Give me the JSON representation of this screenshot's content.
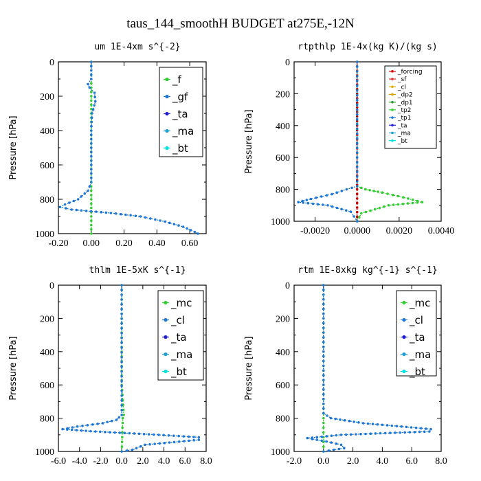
{
  "title": "taus_144_smoothH  BUDGET at275E,-12N",
  "chart_data": [
    {
      "type": "line",
      "title": "um   1E-4xm s^{-2}",
      "ylabel": "Pressure [hPa]",
      "xlim": [
        -0.2,
        0.7
      ],
      "ylim": [
        1000,
        0
      ],
      "xticks": [
        -0.2,
        0.0,
        0.2,
        0.4,
        0.6
      ],
      "xtick_labels": [
        "-0.20",
        "0.00",
        "0.20",
        "0.40",
        "0.60"
      ],
      "yticks": [
        0,
        200,
        400,
        600,
        800,
        1000
      ],
      "legend_position": "top-right",
      "series": [
        {
          "name": "_f",
          "color": "#33cc33",
          "pressure": [
            1000,
            900,
            800,
            700,
            600,
            500,
            400,
            300,
            200,
            100,
            0
          ],
          "values": [
            0,
            0,
            0,
            0,
            0,
            0,
            0,
            0,
            0,
            0,
            0
          ]
        },
        {
          "name": "_gf",
          "color": "#1f77d4",
          "pressure": [
            0,
            100,
            130,
            150,
            180,
            230,
            300,
            400,
            500,
            600,
            700,
            750,
            800,
            830,
            845,
            860,
            880,
            900,
            930,
            960,
            990,
            1000
          ],
          "values": [
            0,
            0,
            -0.02,
            -0.01,
            0.02,
            0.025,
            0.005,
            0,
            0,
            0,
            0,
            -0.02,
            -0.08,
            -0.16,
            -0.19,
            -0.12,
            0.12,
            0.3,
            0.45,
            0.56,
            0.63,
            0.65
          ]
        },
        {
          "name": "_ta",
          "color": "#2020d0",
          "pressure": [],
          "values": []
        },
        {
          "name": "_ma",
          "color": "#1f9fd4",
          "pressure": [],
          "values": []
        },
        {
          "name": "_bt",
          "color": "#00e0e0",
          "pressure": [],
          "values": []
        }
      ]
    },
    {
      "type": "line",
      "title": "rtpthlp   1E-4x(kg K)/(kg s)",
      "ylabel": "Pressure [hPa]",
      "xlim": [
        -0.003,
        0.004
      ],
      "ylim": [
        1000,
        0
      ],
      "xticks": [
        -0.002,
        0.0,
        0.002,
        0.004
      ],
      "xtick_labels": [
        "-0.0020",
        "0.0000",
        "0.0020",
        "0.0040"
      ],
      "yticks": [
        0,
        200,
        400,
        600,
        800,
        1000
      ],
      "legend_position": "top-right",
      "series": [
        {
          "name": "_forcing",
          "color": "#cc0000",
          "pressure": [
            1000,
            800,
            600,
            400,
            200,
            0
          ],
          "values": [
            0,
            0,
            0,
            0,
            0,
            0
          ]
        },
        {
          "name": "_sf",
          "color": "#e03030",
          "pressure": [],
          "values": []
        },
        {
          "name": "_cl",
          "color": "#e0b000",
          "pressure": [],
          "values": []
        },
        {
          "name": "_dp2",
          "color": "#d8a000",
          "pressure": [],
          "values": []
        },
        {
          "name": "_dp1",
          "color": "#2c9a2c",
          "pressure": [],
          "values": []
        },
        {
          "name": "_tp2",
          "color": "#33cc33",
          "pressure": [
            0,
            780,
            800,
            820,
            850,
            880,
            900,
            950,
            1000
          ],
          "values": [
            0,
            0,
            0.0004,
            0.0012,
            0.0022,
            0.0031,
            0.0015,
            0.0002,
            0
          ]
        },
        {
          "name": "_tp1",
          "color": "#1f77d4",
          "pressure": [
            0,
            780,
            800,
            830,
            860,
            880,
            900,
            940,
            1000
          ],
          "values": [
            0,
            0,
            -0.0005,
            -0.0012,
            -0.0022,
            -0.0028,
            -0.0014,
            -0.0003,
            0
          ]
        },
        {
          "name": "_ta",
          "color": "#2020d0",
          "pressure": [],
          "values": []
        },
        {
          "name": "_ma",
          "color": "#1f9fd4",
          "pressure": [],
          "values": []
        },
        {
          "name": "_bt",
          "color": "#00e0e0",
          "pressure": [],
          "values": []
        }
      ]
    },
    {
      "type": "line",
      "title": "thlm   1E-5xK s^{-1}",
      "ylabel": "Pressure [hPa]",
      "xlim": [
        -6,
        8
      ],
      "ylim": [
        1000,
        0
      ],
      "xticks": [
        -6,
        -4,
        -2,
        0,
        2,
        4,
        6,
        8
      ],
      "xtick_labels": [
        "-6.0",
        "-4.0",
        "-2.0",
        "0.0",
        "2.0",
        "4.0",
        "6.0",
        "8.0"
      ],
      "yticks": [
        0,
        200,
        400,
        600,
        800,
        1000
      ],
      "legend_position": "top-right",
      "series": [
        {
          "name": "_mc",
          "color": "#33cc33",
          "pressure": [
            0,
            200,
            400,
            600,
            780,
            800,
            1000
          ],
          "values": [
            0,
            0,
            0,
            0,
            0.2,
            0.1,
            0
          ]
        },
        {
          "name": "_cl",
          "color": "#1f77d4",
          "pressure": [
            0,
            780,
            810,
            830,
            850,
            866,
            880,
            900,
            915,
            930,
            960,
            990,
            1000
          ],
          "values": [
            0,
            0,
            -0.5,
            -1.8,
            -4.2,
            -5.6,
            -2.5,
            3.5,
            7.3,
            7.3,
            2.2,
            1.0,
            0
          ]
        },
        {
          "name": "_ta",
          "color": "#2020d0",
          "pressure": [],
          "values": []
        },
        {
          "name": "_ma",
          "color": "#1f9fd4",
          "pressure": [],
          "values": []
        },
        {
          "name": "_bt",
          "color": "#00e0e0",
          "pressure": [],
          "values": []
        }
      ]
    },
    {
      "type": "line",
      "title": "rtm   1E-8xkg kg^{-1} s^{-1}",
      "ylabel": "Pressure [hPa]",
      "xlim": [
        -2,
        8
      ],
      "ylim": [
        1000,
        0
      ],
      "xticks": [
        -2,
        0,
        2,
        4,
        6,
        8
      ],
      "xtick_labels": [
        "-2.0",
        "0.0",
        "2.0",
        "4.0",
        "6.0",
        "8.0"
      ],
      "yticks": [
        0,
        200,
        400,
        600,
        800,
        1000
      ],
      "legend_position": "top-right",
      "series": [
        {
          "name": "_mc",
          "color": "#33cc33",
          "pressure": [
            0,
            200,
            400,
            600,
            800,
            1000
          ],
          "values": [
            0,
            0,
            0,
            0,
            0,
            0
          ]
        },
        {
          "name": "_cl",
          "color": "#1f77d4",
          "pressure": [
            0,
            770,
            800,
            830,
            850,
            866,
            880,
            900,
            920,
            940,
            960,
            980,
            1000
          ],
          "values": [
            0,
            0,
            0.5,
            2.7,
            5.3,
            7.3,
            7.2,
            1.2,
            -1.1,
            0.2,
            1.2,
            1.4,
            0
          ]
        },
        {
          "name": "_ta",
          "color": "#2020d0",
          "pressure": [],
          "values": []
        },
        {
          "name": "_ma",
          "color": "#1f9fd4",
          "pressure": [],
          "values": []
        },
        {
          "name": "_bt",
          "color": "#00e0e0",
          "pressure": [],
          "values": []
        }
      ]
    }
  ]
}
